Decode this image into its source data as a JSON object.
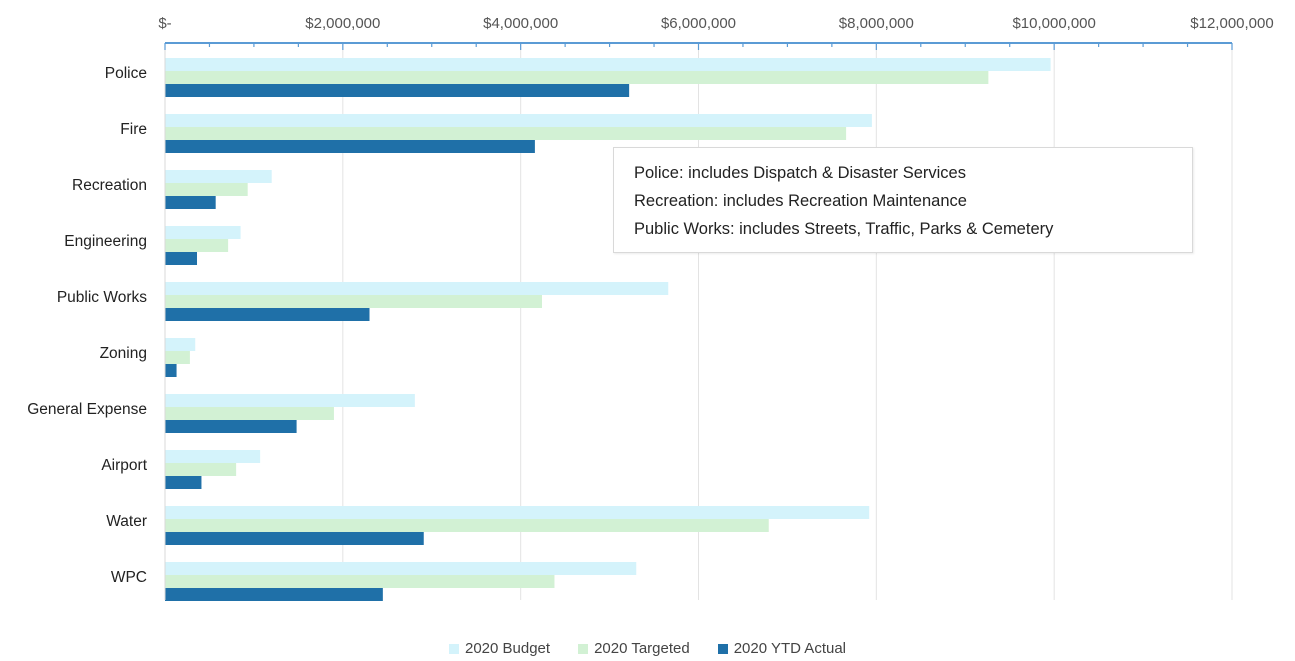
{
  "chart_data": {
    "type": "bar",
    "orientation": "horizontal",
    "categories": [
      "Police",
      "Fire",
      "Recreation",
      "Engineering",
      "Public Works",
      "Zoning",
      "General Expense",
      "Airport",
      "Water",
      "WPC"
    ],
    "series": [
      {
        "name": "2020 Budget",
        "color": "#d4f3fb",
        "values": [
          9960000,
          7950000,
          1200000,
          850000,
          5660000,
          340000,
          2810000,
          1070000,
          7920000,
          5300000
        ]
      },
      {
        "name": "2020 Targeted",
        "color": "#d2f1d4",
        "values": [
          9260000,
          7660000,
          930000,
          710000,
          4240000,
          280000,
          1900000,
          800000,
          6790000,
          4380000
        ]
      },
      {
        "name": "2020 YTD Actual",
        "color": "#1f70a8",
        "values": [
          5220000,
          4160000,
          570000,
          360000,
          2300000,
          130000,
          1480000,
          410000,
          2910000,
          2450000
        ]
      }
    ],
    "xlim": [
      0,
      12000000
    ],
    "x_ticks": [
      0,
      2000000,
      4000000,
      6000000,
      8000000,
      10000000,
      12000000
    ],
    "x_tick_labels": [
      "$-",
      "$2,000,000",
      "$4,000,000",
      "$6,000,000",
      "$8,000,000",
      "$10,000,000",
      "$12,000,000"
    ],
    "axis_position": "top",
    "grid": true,
    "legend_position": "bottom",
    "annotations": [
      "Police:  includes Dispatch & Disaster Services",
      "Recreation:  includes Recreation Maintenance",
      "Public Works:  includes Streets, Traffic, Parks & Cemetery"
    ],
    "axis_color": "#5b9bd5",
    "grid_color": "#e3e3e3"
  }
}
